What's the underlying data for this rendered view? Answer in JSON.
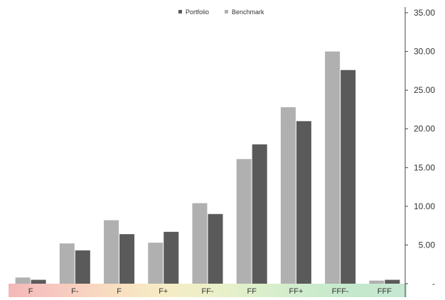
{
  "chart_data": {
    "type": "bar",
    "title": "",
    "xlabel": "",
    "ylabel": "",
    "categories": [
      "F",
      "F-",
      "F",
      "F+",
      "FF-",
      "FF",
      "FF+",
      "FFF-",
      "FFF"
    ],
    "series": [
      {
        "name": "Benchmark",
        "color": "#b0b0b0",
        "values": [
          0.8,
          5.2,
          8.2,
          5.3,
          10.4,
          16.1,
          22.8,
          30.0,
          0.4
        ]
      },
      {
        "name": "Portfolio",
        "color": "#5a5a5a",
        "values": [
          0.5,
          4.3,
          6.4,
          6.7,
          9.0,
          18.0,
          21.0,
          27.6,
          0.5
        ]
      }
    ],
    "legend_order": [
      "Portfolio",
      "Benchmark"
    ],
    "ylim": [
      0,
      35
    ],
    "yticks": [
      "-",
      "5.00",
      "10.00",
      "15.00",
      "20.00",
      "25.00",
      "30.00",
      "35.00"
    ],
    "y_axis_position": "right",
    "legend_position": "top-center",
    "grid": false,
    "category_band": {
      "colors": [
        "#f4b8b8",
        "#f7c9c0",
        "#f8dcc0",
        "#f6ebc4",
        "#edf0c8",
        "#dcefcb",
        "#cdebcd",
        "#c4e8cc",
        "#c6e8d4"
      ]
    }
  }
}
